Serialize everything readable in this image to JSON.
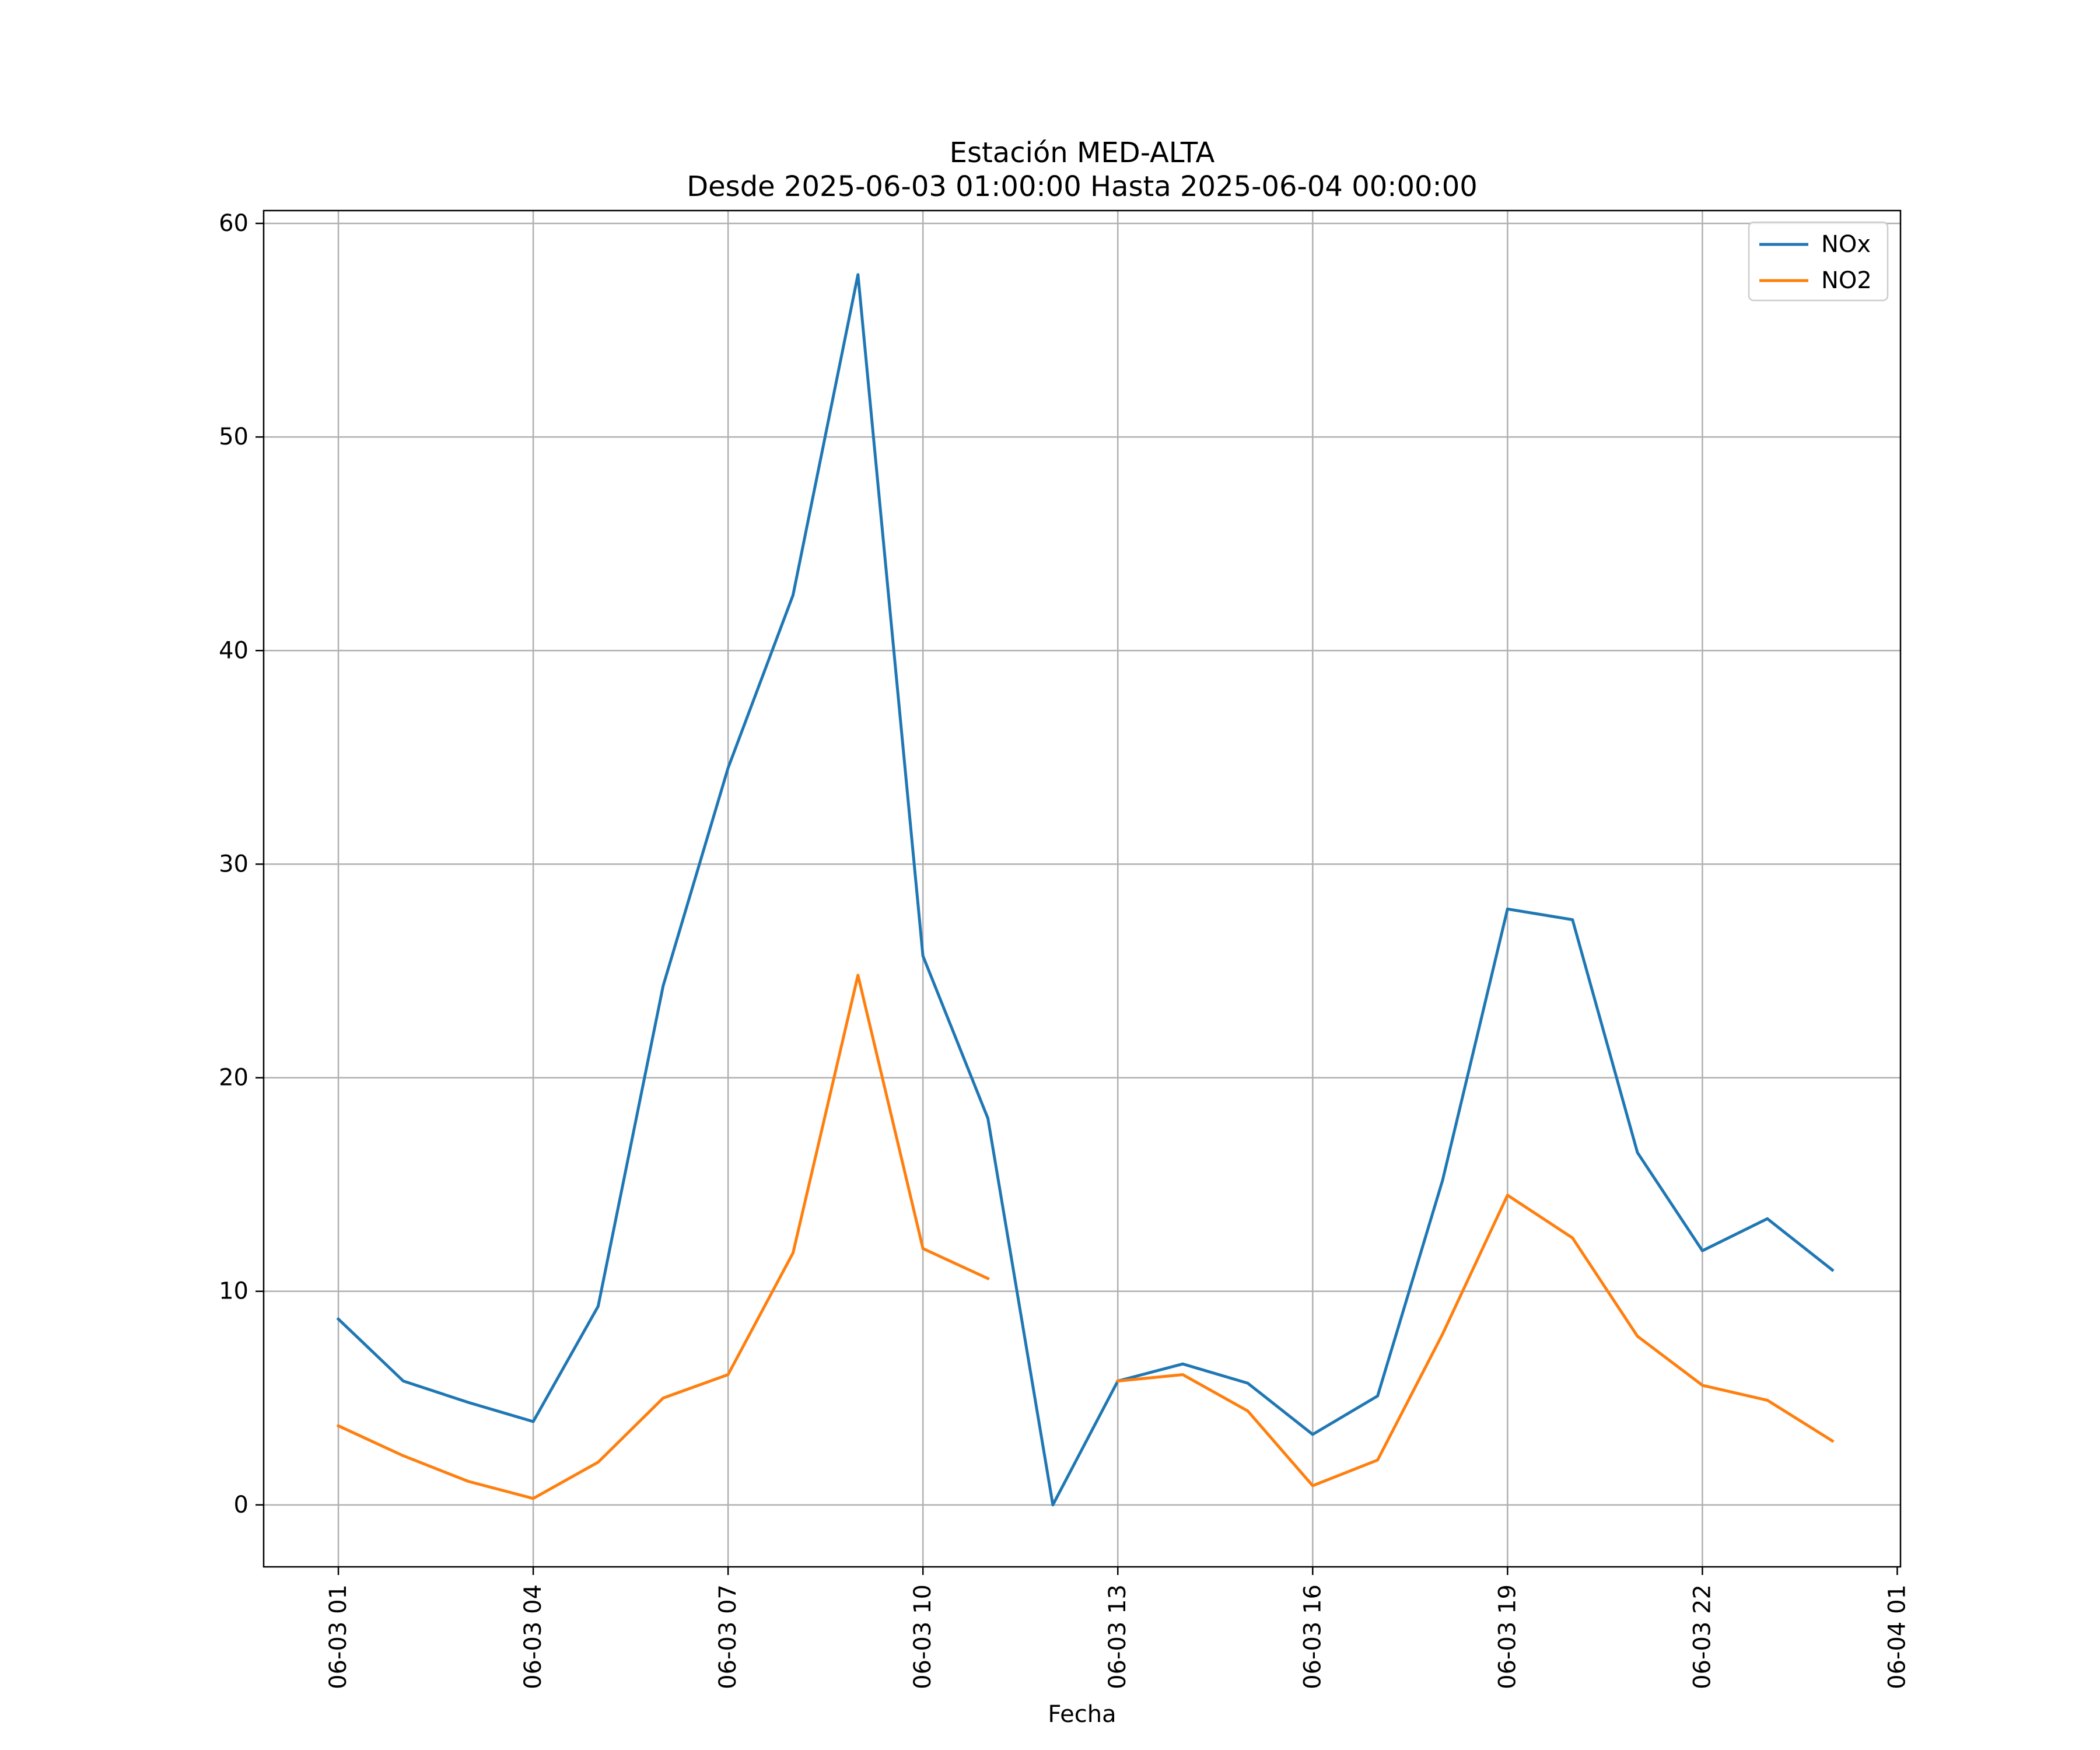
{
  "chart_data": {
    "type": "line",
    "title": "Estación MED-ALTA",
    "subtitle": "Desde 2025-06-03 01:00:00 Hasta 2025-06-04 00:00:00",
    "xlabel": "Fecha",
    "ylabel": "",
    "x_unit": "hours",
    "x": [
      1,
      2,
      3,
      4,
      5,
      6,
      7,
      8,
      9,
      10,
      11,
      12,
      13,
      14,
      15,
      16,
      17,
      18,
      19,
      20,
      21,
      22,
      23,
      24
    ],
    "xlim": [
      -0.15,
      25.05
    ],
    "ylim": [
      -2.9,
      60.6
    ],
    "grid": true,
    "legend_position": "top-right",
    "x_ticks": [
      {
        "value": 1,
        "label": "06-03 01"
      },
      {
        "value": 4,
        "label": "06-03 04"
      },
      {
        "value": 7,
        "label": "06-03 07"
      },
      {
        "value": 10,
        "label": "06-03 10"
      },
      {
        "value": 13,
        "label": "06-03 13"
      },
      {
        "value": 16,
        "label": "06-03 16"
      },
      {
        "value": 19,
        "label": "06-03 19"
      },
      {
        "value": 22,
        "label": "06-03 22"
      },
      {
        "value": 25,
        "label": "06-04 01"
      }
    ],
    "y_ticks": [
      {
        "value": 0,
        "label": "0"
      },
      {
        "value": 10,
        "label": "10"
      },
      {
        "value": 20,
        "label": "20"
      },
      {
        "value": 30,
        "label": "30"
      },
      {
        "value": 40,
        "label": "40"
      },
      {
        "value": 50,
        "label": "50"
      },
      {
        "value": 60,
        "label": "60"
      }
    ],
    "series": [
      {
        "name": "NOx",
        "color": "#1f77b4",
        "values": [
          8.7,
          5.8,
          4.8,
          3.9,
          9.3,
          24.3,
          34.5,
          42.6,
          57.6,
          25.7,
          18.1,
          0.0,
          5.8,
          6.6,
          5.7,
          3.3,
          5.1,
          15.2,
          27.9,
          27.4,
          16.5,
          11.9,
          13.4,
          11.0
        ]
      },
      {
        "name": "NO2",
        "color": "#ff7f0e",
        "values": [
          3.7,
          2.3,
          1.1,
          0.3,
          2.0,
          5.0,
          6.1,
          11.8,
          24.8,
          12.0,
          10.6,
          null,
          5.8,
          6.1,
          4.4,
          0.9,
          2.1,
          8.0,
          14.5,
          12.5,
          7.9,
          5.6,
          4.9,
          3.0
        ]
      }
    ]
  }
}
